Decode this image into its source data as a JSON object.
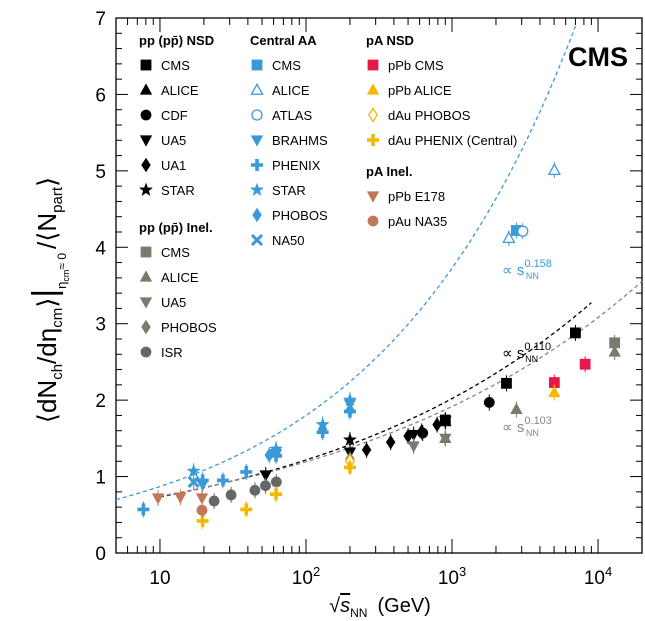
{
  "chart_data": {
    "type": "scatter",
    "x_scale": "log",
    "xlim": [
      5,
      20000
    ],
    "ylim": [
      0,
      7
    ],
    "x_tick_labels": [
      {
        "value": 10,
        "base": "10",
        "exp": ""
      },
      {
        "value": 100,
        "base": "10",
        "exp": "2"
      },
      {
        "value": 1000,
        "base": "10",
        "exp": "3"
      },
      {
        "value": 10000,
        "base": "10",
        "exp": "4"
      }
    ],
    "y_ticks": [
      0,
      1,
      2,
      3,
      4,
      5,
      6,
      7
    ],
    "y_tick_labels": [
      "0",
      "1",
      "2",
      "3",
      "4",
      "5",
      "6",
      "7"
    ],
    "xlabel": {
      "root": "√",
      "s": "s",
      "sub": "NN",
      "unit": "(GeV)"
    },
    "ylabel": {
      "l1": "⟨dN",
      "l1sub": "ch",
      "l2": "/dη",
      "l2sub": "cm",
      "l3": "⟩",
      "bar": "|",
      "barsub": "η",
      "barsub2": "cm",
      "barsub3": "≈ 0",
      "l4": "/⟨N",
      "l4sub": "part",
      "l5": "⟩"
    },
    "experiment_label": "CMS",
    "fits": [
      {
        "name": "∝ s",
        "exp": "0.158",
        "sub": "NN",
        "color": "#3a9ad9",
        "coef": 0.42,
        "power": 0.316,
        "x_from": 5,
        "x_to": 7000
      },
      {
        "name": "∝ s",
        "exp": "0.110",
        "sub": "NN",
        "color": "#000000",
        "coef": 0.442,
        "power": 0.22,
        "x_from": 10,
        "x_to": 9000
      },
      {
        "name": "∝ s",
        "exp": "0.103",
        "sub": "NN",
        "color": "#888888",
        "coef": 0.462,
        "power": 0.206,
        "x_from": 10,
        "x_to": 20000
      }
    ],
    "legend_groups": [
      {
        "title": "pp (pp̄) NSD",
        "entries": [
          "CMS",
          "ALICE",
          "CDF",
          "UA5",
          "UA1",
          "STAR"
        ]
      },
      {
        "title": "pp (pp̄) Inel.",
        "entries": [
          "CMS",
          "ALICE",
          "UA5",
          "PHOBOS",
          "ISR"
        ]
      },
      {
        "title": "Central AA",
        "entries": [
          "CMS",
          "ALICE",
          "ATLAS",
          "BRAHMS",
          "PHENIX",
          "STAR",
          "PHOBOS",
          "NA50"
        ]
      },
      {
        "title": "pA NSD",
        "entries": [
          "pPb CMS",
          "pPb ALICE",
          "dAu PHOBOS",
          "dAu PHENIX (Central)"
        ]
      },
      {
        "title": "pA Inel.",
        "entries": [
          "pPb E178",
          "pAu NA35"
        ]
      }
    ],
    "series": [
      {
        "name": "CMS",
        "group": "pp (pp̄) NSD",
        "marker": "square",
        "color": "#000000",
        "filled": true,
        "points": [
          {
            "x": 900,
            "y": 1.74
          },
          {
            "x": 2360,
            "y": 2.22
          },
          {
            "x": 7000,
            "y": 2.88
          }
        ]
      },
      {
        "name": "ALICE",
        "group": "pp (pp̄) NSD",
        "marker": "triangle-up",
        "color": "#000000",
        "filled": true,
        "points": [
          {
            "x": 900,
            "y": 1.72
          }
        ]
      },
      {
        "name": "CDF",
        "group": "pp (pp̄) NSD",
        "marker": "circle",
        "color": "#000000",
        "filled": true,
        "points": [
          {
            "x": 630,
            "y": 1.57
          },
          {
            "x": 1800,
            "y": 1.97
          }
        ]
      },
      {
        "name": "UA5",
        "group": "pp (pp̄) NSD",
        "marker": "triangle-down",
        "color": "#000000",
        "filled": true,
        "points": [
          {
            "x": 53,
            "y": 1.02
          },
          {
            "x": 200,
            "y": 1.32
          },
          {
            "x": 546,
            "y": 1.55
          },
          {
            "x": 900,
            "y": 1.73
          }
        ]
      },
      {
        "name": "UA1",
        "group": "pp (pp̄) NSD",
        "marker": "diamond",
        "color": "#000000",
        "filled": true,
        "points": [
          {
            "x": 260,
            "y": 1.35
          },
          {
            "x": 380,
            "y": 1.45
          },
          {
            "x": 500,
            "y": 1.53
          },
          {
            "x": 620,
            "y": 1.59
          },
          {
            "x": 790,
            "y": 1.68
          }
        ]
      },
      {
        "name": "STAR",
        "group": "pp (pp̄) NSD",
        "marker": "star",
        "color": "#000000",
        "filled": true,
        "points": [
          {
            "x": 200,
            "y": 1.48
          }
        ]
      },
      {
        "name": "CMS",
        "group": "pp (pp̄) Inel.",
        "marker": "square",
        "color": "#7a7a6e",
        "filled": true,
        "points": [
          {
            "x": 13000,
            "y": 2.75
          }
        ]
      },
      {
        "name": "ALICE",
        "group": "pp (pp̄) Inel.",
        "marker": "triangle-up",
        "color": "#7a7a6e",
        "filled": true,
        "points": [
          {
            "x": 900,
            "y": 1.5
          },
          {
            "x": 2760,
            "y": 1.88
          },
          {
            "x": 13000,
            "y": 2.63
          }
        ]
      },
      {
        "name": "UA5",
        "group": "pp (pp̄) Inel.",
        "marker": "triangle-down",
        "color": "#7a7a6e",
        "filled": true,
        "points": [
          {
            "x": 546,
            "y": 1.4
          },
          {
            "x": 900,
            "y": 1.5
          }
        ]
      },
      {
        "name": "PHOBOS",
        "group": "pp (pp̄) Inel.",
        "marker": "diamond",
        "color": "#7a7a6e",
        "filled": true,
        "points": [
          {
            "x": 200,
            "y": 1.23
          }
        ]
      },
      {
        "name": "ISR",
        "group": "pp (pp̄) Inel.",
        "marker": "circle",
        "color": "#666666",
        "filled": true,
        "points": [
          {
            "x": 23.5,
            "y": 0.68
          },
          {
            "x": 30.7,
            "y": 0.76
          },
          {
            "x": 44.7,
            "y": 0.82
          },
          {
            "x": 52.8,
            "y": 0.88
          },
          {
            "x": 62.7,
            "y": 0.93
          }
        ]
      },
      {
        "name": "CMS",
        "group": "Central AA",
        "marker": "square",
        "color": "#3a9ad9",
        "filled": true,
        "points": [
          {
            "x": 2760,
            "y": 4.22
          }
        ]
      },
      {
        "name": "ALICE",
        "group": "Central AA",
        "marker": "triangle-up",
        "color": "#3a9ad9",
        "filled": false,
        "points": [
          {
            "x": 2450,
            "y": 4.12
          },
          {
            "x": 5020,
            "y": 5.01
          }
        ]
      },
      {
        "name": "ATLAS",
        "group": "Central AA",
        "marker": "circle",
        "color": "#3a9ad9",
        "filled": false,
        "points": [
          {
            "x": 3050,
            "y": 4.21
          }
        ]
      },
      {
        "name": "BRAHMS",
        "group": "Central AA",
        "marker": "triangle-down",
        "color": "#3a9ad9",
        "filled": true,
        "points": [
          {
            "x": 19.6,
            "y": 0.9
          },
          {
            "x": 62.4,
            "y": 1.3
          },
          {
            "x": 200,
            "y": 1.95
          }
        ]
      },
      {
        "name": "PHENIX",
        "group": "Central AA",
        "marker": "cross",
        "color": "#3a9ad9",
        "filled": true,
        "points": [
          {
            "x": 7.7,
            "y": 0.57
          },
          {
            "x": 19.6,
            "y": 0.95
          },
          {
            "x": 27,
            "y": 0.95
          },
          {
            "x": 39,
            "y": 1.06
          },
          {
            "x": 62.4,
            "y": 1.27
          },
          {
            "x": 130,
            "y": 1.58
          },
          {
            "x": 200,
            "y": 1.85
          }
        ]
      },
      {
        "name": "STAR",
        "group": "Central AA",
        "marker": "star",
        "color": "#3a9ad9",
        "filled": true,
        "points": [
          {
            "x": 17,
            "y": 1.07
          },
          {
            "x": 62.4,
            "y": 1.36
          },
          {
            "x": 130,
            "y": 1.68
          },
          {
            "x": 200,
            "y": 2.0
          }
        ]
      },
      {
        "name": "PHOBOS",
        "group": "Central AA",
        "marker": "diamond",
        "color": "#3a9ad9",
        "filled": true,
        "points": [
          {
            "x": 19.6,
            "y": 0.92
          },
          {
            "x": 56,
            "y": 1.28
          },
          {
            "x": 62.4,
            "y": 1.31
          },
          {
            "x": 130,
            "y": 1.62
          },
          {
            "x": 200,
            "y": 1.87
          }
        ]
      },
      {
        "name": "NA50",
        "group": "Central AA",
        "marker": "x",
        "color": "#3a9ad9",
        "filled": true,
        "points": [
          {
            "x": 17,
            "y": 0.93
          }
        ]
      },
      {
        "name": "pPb CMS",
        "group": "pA NSD",
        "marker": "square",
        "color": "#e8174a",
        "filled": true,
        "points": [
          {
            "x": 5020,
            "y": 2.23
          },
          {
            "x": 8160,
            "y": 2.47
          }
        ]
      },
      {
        "name": "pPb ALICE",
        "group": "pA NSD",
        "marker": "triangle-up",
        "color": "#f5b800",
        "filled": true,
        "points": [
          {
            "x": 5020,
            "y": 2.1
          }
        ]
      },
      {
        "name": "dAu PHOBOS",
        "group": "pA NSD",
        "marker": "diamond",
        "color": "#f5b800",
        "filled": false,
        "points": [
          {
            "x": 200,
            "y": 1.2
          }
        ]
      },
      {
        "name": "dAu PHENIX (Central)",
        "group": "pA NSD",
        "marker": "cross",
        "color": "#f5b800",
        "filled": true,
        "points": [
          {
            "x": 19.6,
            "y": 0.42
          },
          {
            "x": 39,
            "y": 0.57
          },
          {
            "x": 62.4,
            "y": 0.77
          },
          {
            "x": 200,
            "y": 1.12
          }
        ]
      },
      {
        "name": "pPb E178",
        "group": "pA Inel.",
        "marker": "triangle-down",
        "color": "#c0775a",
        "filled": true,
        "points": [
          {
            "x": 9.7,
            "y": 0.72
          },
          {
            "x": 13.8,
            "y": 0.73
          },
          {
            "x": 19.4,
            "y": 0.72
          }
        ]
      },
      {
        "name": "pAu NA35",
        "group": "pA Inel.",
        "marker": "circle",
        "color": "#c0775a",
        "filled": true,
        "points": [
          {
            "x": 19.4,
            "y": 0.56
          }
        ]
      }
    ]
  }
}
